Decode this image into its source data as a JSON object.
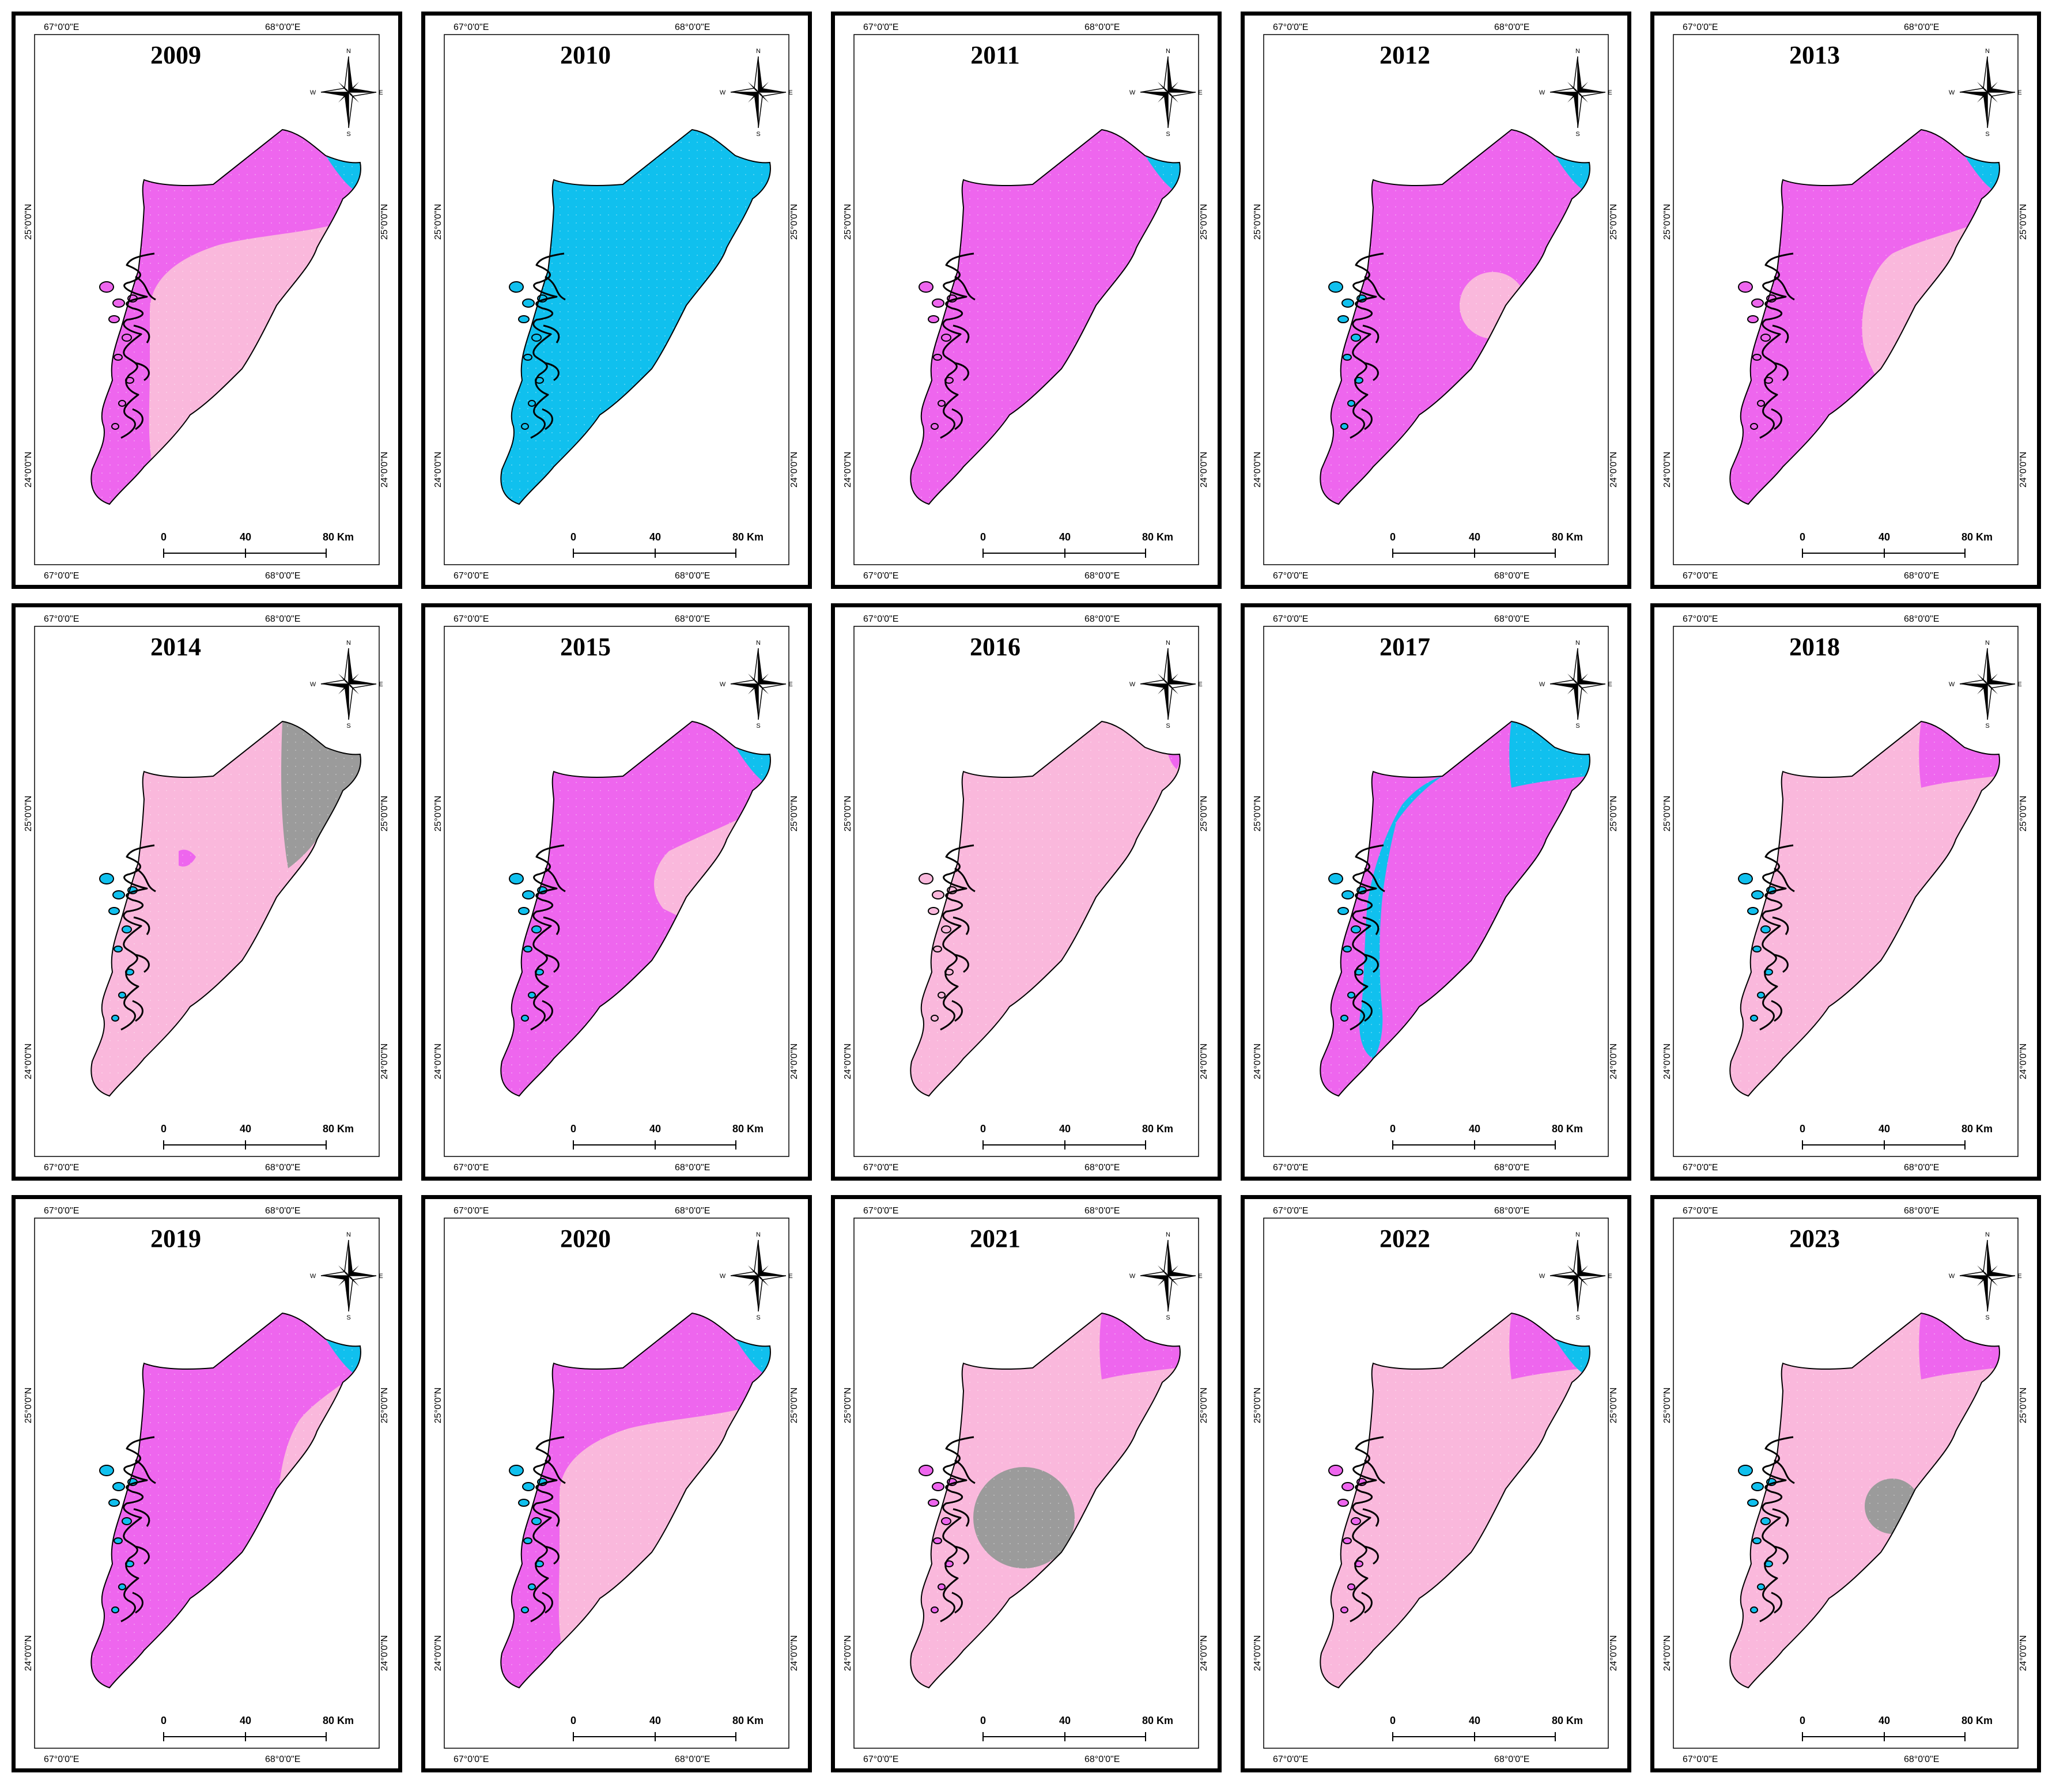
{
  "colors": {
    "magenta": "#ee66ee",
    "light_pink": "#fab8dc",
    "cyan": "#10c0ee",
    "blue": "#2d54d8",
    "gray": "#9b9b9b",
    "outline": "#000000"
  },
  "map_frame": {
    "lon_labels": [
      "67°0'0\"E",
      "68°0'0\"E"
    ],
    "lat_labels": [
      "25°0'0\"N",
      "24°0'0\"N"
    ],
    "scale_bar": {
      "ticks": [
        "0",
        "40",
        "80 Km"
      ]
    },
    "compass": {
      "n": "N",
      "s": "S",
      "e": "E",
      "w": "W",
      "icon": "north-arrow-compass-rose"
    }
  },
  "panels": [
    {
      "year": "2009",
      "base": "magenta",
      "creek_color": "magenta",
      "zones": [
        {
          "shape": "band_center",
          "color": "light_pink"
        },
        {
          "shape": "ne_tip",
          "color": "cyan"
        }
      ]
    },
    {
      "year": "2010",
      "base": "cyan",
      "creek_color": "cyan",
      "zones": [
        {
          "shape": "ne_east_wedge",
          "color": "magenta"
        }
      ]
    },
    {
      "year": "2011",
      "base": "magenta",
      "creek_color": "magenta",
      "zones": [
        {
          "shape": "ne_tip",
          "color": "cyan"
        }
      ]
    },
    {
      "year": "2012",
      "base": "magenta",
      "creek_color": "cyan",
      "zones": [
        {
          "shape": "circle_mid",
          "color": "light_pink"
        },
        {
          "shape": "ne_tip",
          "color": "cyan"
        }
      ]
    },
    {
      "year": "2013",
      "base": "magenta",
      "creek_color": "magenta",
      "zones": [
        {
          "shape": "east_half",
          "color": "light_pink"
        },
        {
          "shape": "ne_tip",
          "color": "cyan"
        }
      ]
    },
    {
      "year": "2014",
      "base": "light_pink",
      "creek_color": "cyan",
      "zones": [
        {
          "shape": "ne_strip",
          "color": "gray"
        },
        {
          "shape": "west_edge",
          "color": "magenta"
        }
      ]
    },
    {
      "year": "2015",
      "base": "magenta",
      "creek_color": "cyan",
      "zones": [
        {
          "shape": "east_blob",
          "color": "light_pink"
        },
        {
          "shape": "ne_tip",
          "color": "cyan"
        }
      ]
    },
    {
      "year": "2016",
      "base": "light_pink",
      "creek_color": "light_pink",
      "zones": [
        {
          "shape": "ne_tip_small",
          "color": "magenta"
        }
      ]
    },
    {
      "year": "2017",
      "base": "magenta",
      "creek_color": "cyan",
      "zones": [
        {
          "shape": "west_strip",
          "color": "cyan"
        },
        {
          "shape": "ne_cap",
          "color": "cyan"
        }
      ]
    },
    {
      "year": "2018",
      "base": "light_pink",
      "creek_color": "cyan",
      "zones": [
        {
          "shape": "ne_cap",
          "color": "magenta"
        },
        {
          "shape": "circle_small",
          "color": "gray"
        }
      ]
    },
    {
      "year": "2019",
      "base": "magenta",
      "creek_color": "cyan",
      "zones": [
        {
          "shape": "east_lobe",
          "color": "light_pink"
        },
        {
          "shape": "ne_tip",
          "color": "cyan"
        }
      ]
    },
    {
      "year": "2020",
      "base": "magenta",
      "creek_color": "cyan",
      "zones": [
        {
          "shape": "band_center",
          "color": "light_pink"
        },
        {
          "shape": "ne_tip",
          "color": "cyan"
        }
      ]
    },
    {
      "year": "2021",
      "base": "light_pink",
      "creek_color": "magenta",
      "zones": [
        {
          "shape": "ne_cap",
          "color": "magenta"
        },
        {
          "shape": "circle_large",
          "color": "gray"
        }
      ]
    },
    {
      "year": "2022",
      "base": "light_pink",
      "creek_color": "magenta",
      "zones": [
        {
          "shape": "ne_cap",
          "color": "magenta"
        },
        {
          "shape": "ne_tip",
          "color": "cyan"
        }
      ]
    },
    {
      "year": "2023",
      "base": "light_pink",
      "creek_color": "cyan",
      "zones": [
        {
          "shape": "ne_cap",
          "color": "magenta"
        },
        {
          "shape": "circle_mid2",
          "color": "gray"
        }
      ]
    }
  ]
}
